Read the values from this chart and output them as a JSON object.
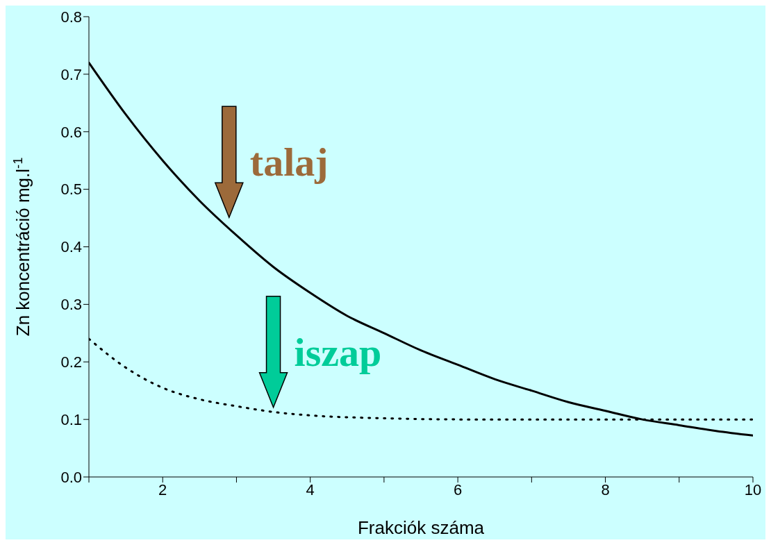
{
  "chart_data": {
    "type": "line",
    "xlabel": "Frakciók száma",
    "ylabel": "Zn koncentráció mg.l$^{-1}$",
    "xlim": [
      1,
      10
    ],
    "xticks": [
      {
        "value": 1,
        "label": null
      },
      2,
      {
        "value": 3,
        "label": null
      },
      4,
      {
        "value": 5,
        "label": null
      },
      6,
      {
        "value": 7,
        "label": null
      },
      8,
      {
        "value": 9,
        "label": null
      },
      10
    ],
    "ylim": [
      0,
      0.8
    ],
    "yticks": [
      {
        "value": 0,
        "label": "0.0"
      },
      0.1,
      0.2,
      0.3,
      0.4,
      0.5,
      0.6,
      0.7,
      0.8
    ],
    "series": [
      {
        "color": "#000000",
        "line_style": "solid",
        "x": [
          1,
          1.5,
          2,
          2.5,
          3,
          3.5,
          4,
          4.5,
          5,
          5.5,
          6,
          6.5,
          7,
          7.5,
          8,
          8.5,
          9,
          9.5,
          10
        ],
        "values": [
          0.72,
          0.63,
          0.55,
          0.48,
          0.42,
          0.365,
          0.32,
          0.28,
          0.25,
          0.22,
          0.195,
          0.17,
          0.15,
          0.13,
          0.115,
          0.1,
          0.09,
          0.08,
          0.072
        ]
      },
      {
        "color": "#000000",
        "line_style": "dotted",
        "x": [
          1,
          1.5,
          2,
          2.5,
          3,
          3.5,
          4,
          5,
          6,
          7,
          8,
          9,
          10
        ],
        "values": [
          0.24,
          0.19,
          0.155,
          0.135,
          0.123,
          0.113,
          0.107,
          0.102,
          0.1,
          0.1,
          0.1,
          0.1,
          0.1
        ]
      }
    ],
    "annotations": [
      {
        "text": "talaj",
        "x": 2.9,
        "y": 0.44
      },
      {
        "text": "iszap",
        "x": 3.5,
        "y": 0.11
      }
    ]
  }
}
